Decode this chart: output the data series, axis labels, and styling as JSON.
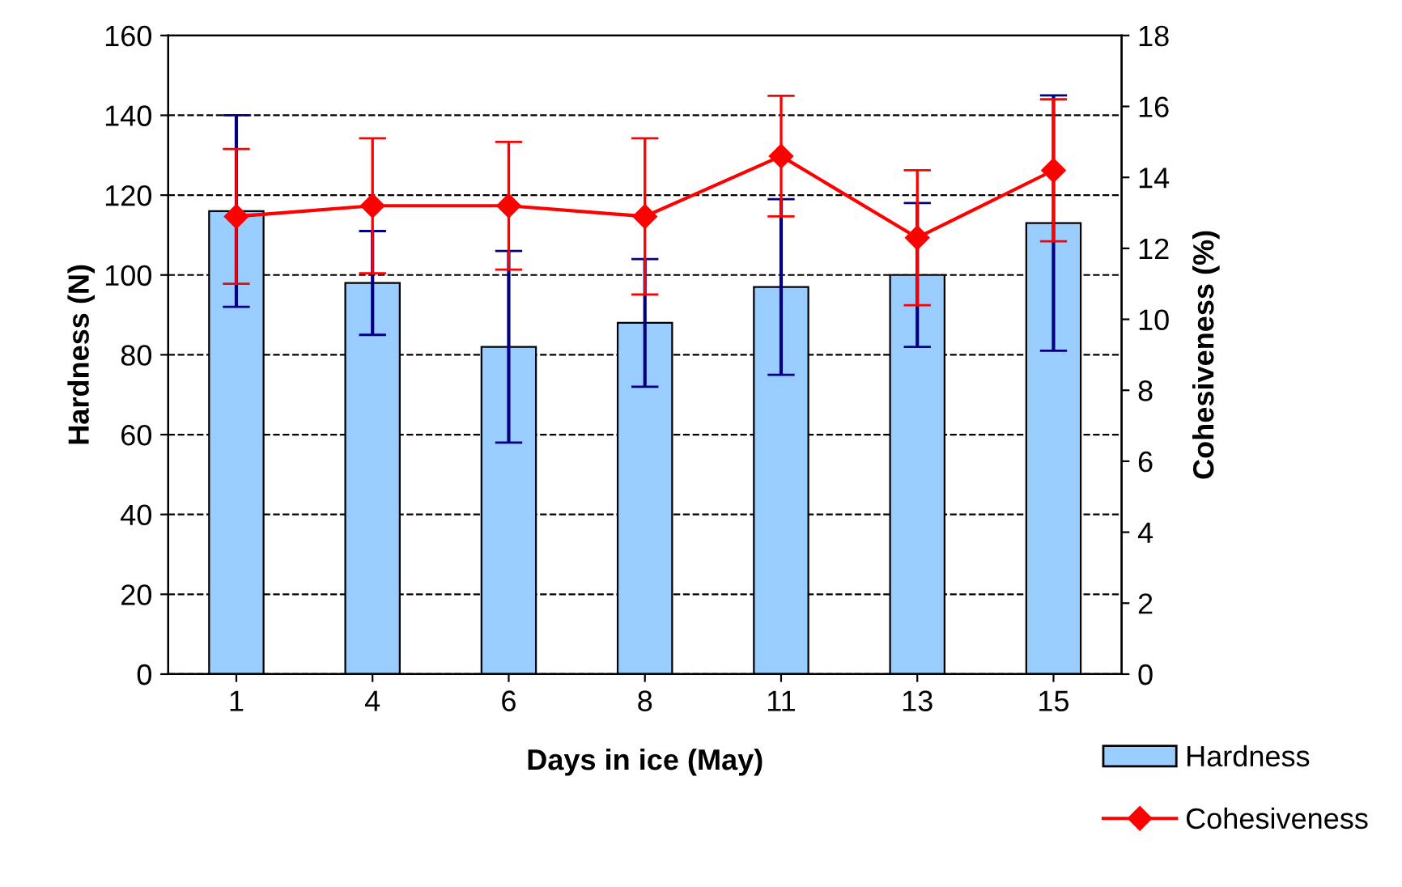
{
  "chart_data": {
    "type": "bar",
    "xlabel": "Days in ice (May)",
    "ylabel": "Hardness (N)",
    "y2label": "Cohesiveness (%)",
    "categories": [
      "1",
      "4",
      "6",
      "8",
      "11",
      "13",
      "15"
    ],
    "series": [
      {
        "name": "Hardness",
        "color": "#99ccff",
        "values": [
          116,
          98,
          82,
          88,
          97,
          100,
          113
        ],
        "errors": [
          24,
          13,
          24,
          16,
          22,
          18,
          32
        ]
      },
      {
        "name": "Cohesiveness",
        "type": "line",
        "axis": "y2",
        "color": "#ff0000",
        "marker": "diamond",
        "values": [
          12.9,
          13.2,
          13.2,
          12.9,
          14.6,
          12.3,
          14.2
        ],
        "errors": [
          1.9,
          1.9,
          1.8,
          2.2,
          1.7,
          1.9,
          2.0
        ]
      }
    ],
    "ylim": [
      0,
      160
    ],
    "yticks": [
      0,
      20,
      40,
      60,
      80,
      100,
      120,
      140,
      160
    ],
    "y2lim": [
      0,
      18
    ],
    "y2ticks": [
      0,
      2,
      4,
      6,
      8,
      10,
      12,
      14,
      16,
      18
    ],
    "grid": "y",
    "legend": "bottom right"
  }
}
